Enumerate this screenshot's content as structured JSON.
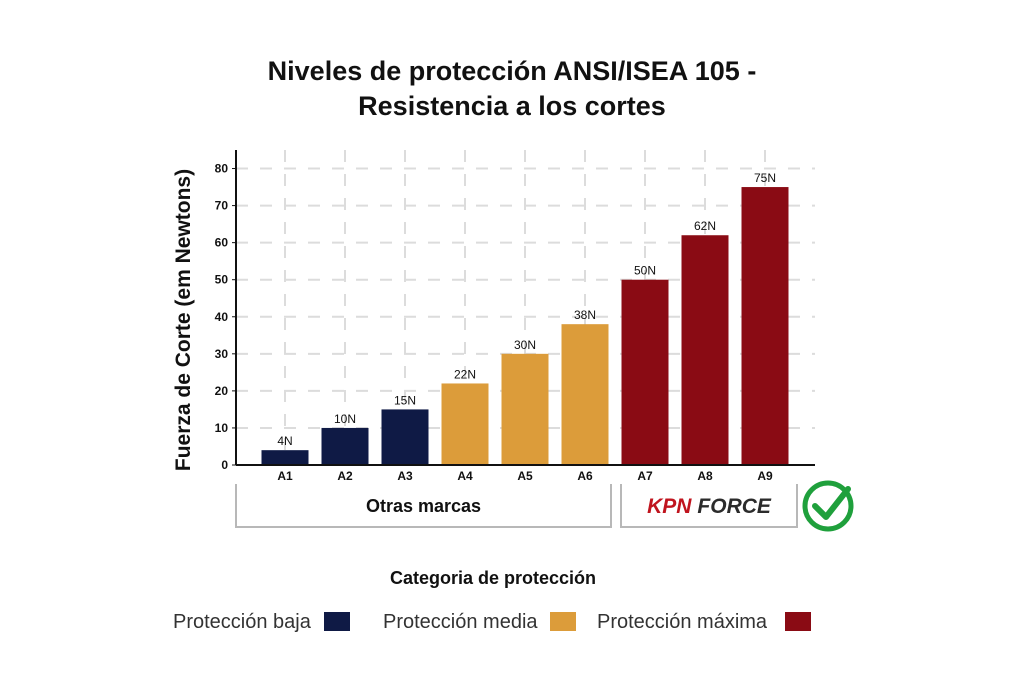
{
  "chart_data": {
    "type": "bar",
    "title_lines": [
      "Niveles de protección ANSI/ISEA 105 -",
      "Resistencia a los cortes"
    ],
    "ylabel": "Fuerza de Corte (em Newtons)",
    "xlabel": "Categoria de protección",
    "categories": [
      "A1",
      "A2",
      "A3",
      "A4",
      "A5",
      "A6",
      "A7",
      "A8",
      "A9"
    ],
    "values": [
      4,
      10,
      15,
      22,
      30,
      38,
      50,
      62,
      75
    ],
    "value_labels": [
      "4N",
      "10N",
      "15N",
      "22N",
      "30N",
      "38N",
      "50N",
      "62N",
      "75N"
    ],
    "ylim": [
      0,
      85
    ],
    "yticks": [
      0,
      10,
      20,
      30,
      40,
      50,
      60,
      70,
      80
    ],
    "grid": true,
    "legend_position": "bottom",
    "series": [
      {
        "name": "Protección baja",
        "color": "#0f1a45",
        "categories": [
          "A1",
          "A2",
          "A3"
        ]
      },
      {
        "name": "Protección media",
        "color": "#dc9c3a",
        "categories": [
          "A4",
          "A5",
          "A6"
        ]
      },
      {
        "name": "Protección máxima",
        "color": "#8a0b14",
        "categories": [
          "A7",
          "A8",
          "A9"
        ]
      }
    ],
    "groups": [
      {
        "label": "Otras marcas",
        "categories": [
          "A1",
          "A2",
          "A3",
          "A4",
          "A5",
          "A6"
        ]
      },
      {
        "label": "",
        "brand_logo": "KPN FORCE",
        "categories": [
          "A7",
          "A8",
          "A9"
        ]
      }
    ],
    "approval_icon": "check-circle-icon",
    "approval_color": "#1fa03c"
  }
}
